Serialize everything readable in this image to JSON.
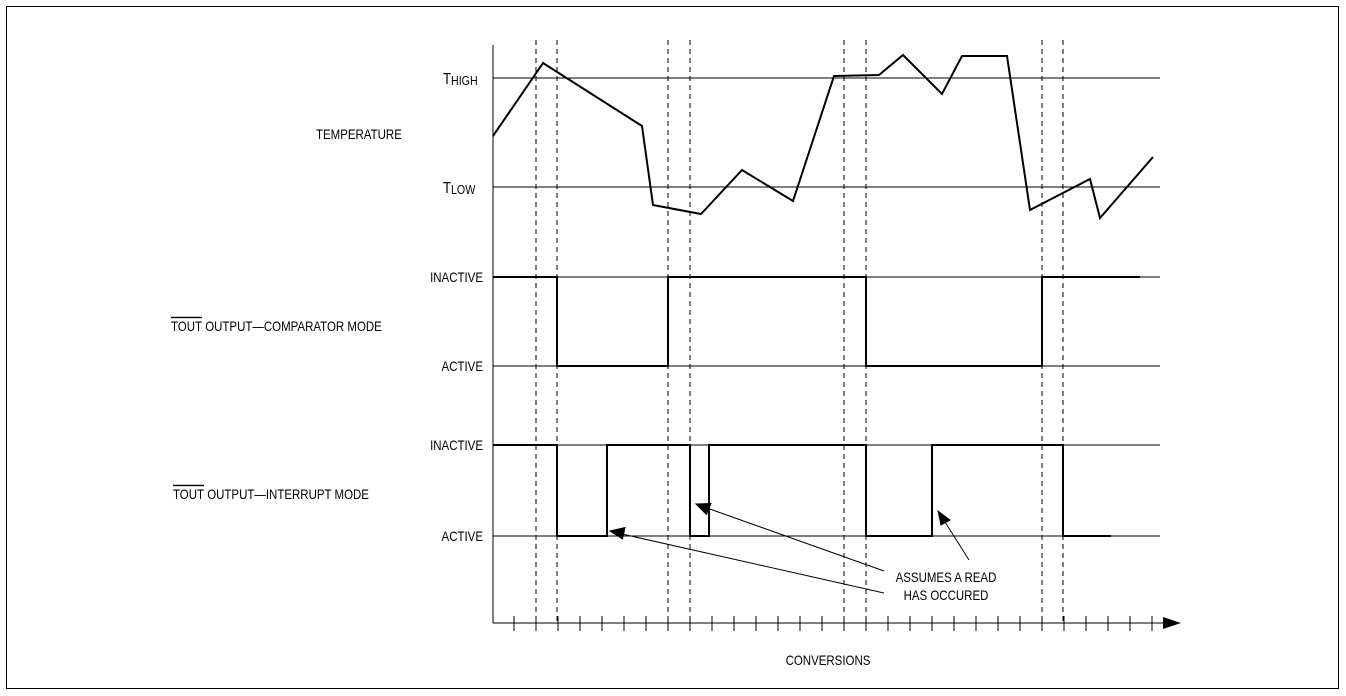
{
  "labels": {
    "t_high_main": "T",
    "t_high_sub": "HIGH",
    "temperature": "TEMPERATURE",
    "t_low_main": "T",
    "t_low_sub": "LOW",
    "comparator_inactive": "INACTIVE",
    "comparator_tout": "TOUT",
    "comparator_mode": " OUTPUT—COMPARATOR MODE",
    "comparator_active": "ACTIVE",
    "interrupt_inactive": "INACTIVE",
    "interrupt_tout": "TOUT",
    "interrupt_mode": " OUTPUT—INTERRUPT MODE",
    "interrupt_active": "ACTIVE",
    "note_line1": "ASSUMES A READ",
    "note_line2": "HAS OCCURED",
    "x_axis": "CONVERSIONS"
  },
  "colors": {
    "ink": "#000000",
    "background": "#ffffff"
  }
}
